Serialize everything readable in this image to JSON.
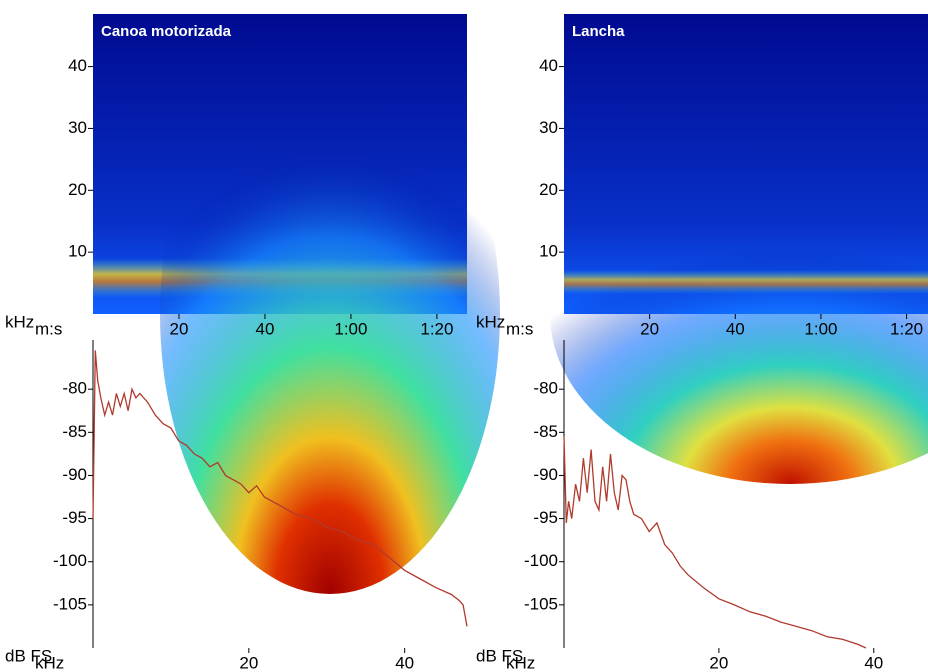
{
  "chart_data": [
    {
      "type": "heatmap",
      "title": "Canoa motorizada",
      "xlabel": "m:s",
      "ylabel": "kHz",
      "xlim": [
        0,
        87
      ],
      "ylim": [
        0,
        48.5
      ],
      "xticks": [
        20,
        40,
        {
          "value": 60,
          "label": "1:00"
        },
        {
          "value": 80,
          "label": "1:20"
        }
      ],
      "yticks": [
        10,
        20,
        30,
        40
      ]
    },
    {
      "type": "heatmap",
      "title": "Lancha",
      "xlabel": "m:s",
      "ylabel": "kHz",
      "xlim": [
        0,
        85
      ],
      "ylim": [
        0,
        48.5
      ],
      "xticks": [
        20,
        40,
        {
          "value": 60,
          "label": "1:00"
        },
        {
          "value": 80,
          "label": "1:20"
        }
      ],
      "yticks": [
        10,
        20,
        30,
        40
      ]
    },
    {
      "type": "line",
      "xlabel": "kHz",
      "ylabel": "dB FS",
      "xlim": [
        0,
        48
      ],
      "ylim": [
        -110,
        -74.3
      ],
      "xticks": [
        20,
        40
      ],
      "yticks": [
        -80,
        -85,
        -90,
        -95,
        -100,
        -105
      ],
      "x": [
        0,
        0.3,
        0.6,
        1,
        1.5,
        2,
        2.5,
        3,
        3.5,
        4,
        4.5,
        5,
        5.5,
        6,
        7,
        8,
        9,
        10,
        11,
        12,
        13,
        14,
        15,
        16,
        17,
        18,
        19,
        20,
        21,
        22,
        23,
        24,
        26,
        28,
        30,
        32,
        34,
        36,
        38,
        40,
        42,
        44,
        46,
        47,
        47.5,
        48
      ],
      "series": [
        {
          "color": "#b03a2e",
          "values": [
            -95,
            -75.5,
            -79,
            -81,
            -83,
            -81.5,
            -83,
            -80.5,
            -82,
            -80.5,
            -82.5,
            -80,
            -81,
            -80.5,
            -81.5,
            -83,
            -84,
            -84.5,
            -86,
            -86.5,
            -87.5,
            -88,
            -89,
            -88.5,
            -90,
            -90.5,
            -91,
            -92,
            -91.2,
            -92.5,
            -93,
            -93.5,
            -94.5,
            -95,
            -96,
            -96.5,
            -97.5,
            -98,
            -99.5,
            -101,
            -102,
            -103,
            -103.8,
            -104.5,
            -105,
            -107.5
          ]
        }
      ]
    },
    {
      "type": "line",
      "xlabel": "kHz",
      "ylabel": "dB FS",
      "xlim": [
        0,
        47
      ],
      "ylim": [
        -110,
        -74.3
      ],
      "xticks": [
        20,
        40
      ],
      "yticks": [
        -80,
        -85,
        -90,
        -95,
        -100,
        -105
      ],
      "x": [
        0,
        0.3,
        0.6,
        1,
        1.5,
        2,
        2.5,
        3,
        3.5,
        4,
        4.5,
        5,
        5.5,
        6,
        6.5,
        7,
        7.5,
        8,
        8.5,
        9,
        10,
        11,
        12,
        13,
        14,
        15,
        16,
        18,
        20,
        22,
        24,
        26,
        28,
        30,
        32,
        34,
        36,
        38,
        39
      ],
      "series": [
        {
          "color": "#b03a2e",
          "values": [
            -85.5,
            -95.5,
            -93,
            -95,
            -91,
            -93,
            -88,
            -92,
            -87,
            -93,
            -94,
            -89,
            -93,
            -87.5,
            -92,
            -94,
            -90,
            -90.5,
            -93,
            -94.5,
            -95,
            -96.5,
            -95.5,
            -98,
            -99,
            -100.5,
            -101.5,
            -103,
            -104.3,
            -105,
            -105.8,
            -106.3,
            -107,
            -107.5,
            -108,
            -108.7,
            -109,
            -109.6,
            -110
          ]
        }
      ]
    }
  ]
}
